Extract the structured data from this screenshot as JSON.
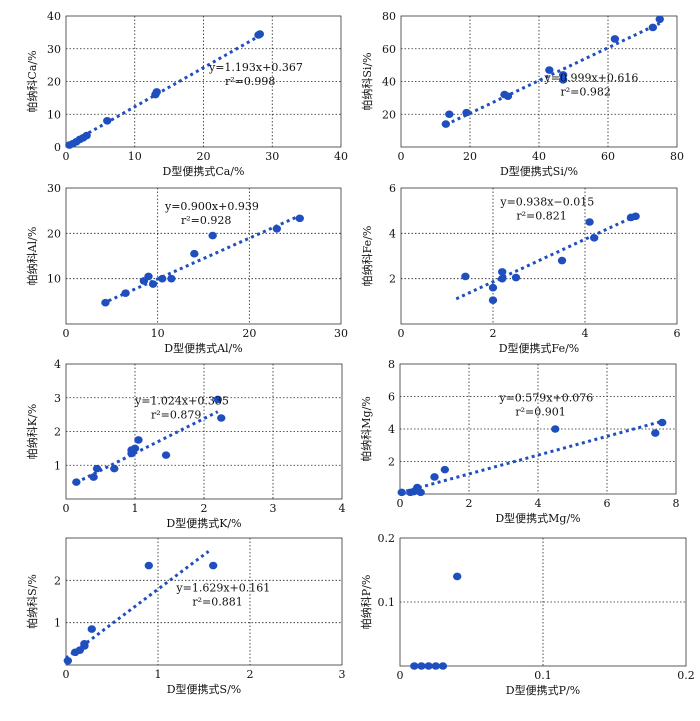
{
  "colors": {
    "point": "#1f4fbf",
    "fit_line": "#1f4fbf",
    "grid": "#222222",
    "axis": "#333333"
  },
  "chart_data": [
    {
      "type": "scatter",
      "xlabel": "D型便携式Ca/%",
      "ylabel": "帕纳科Ca/%",
      "xlim": [
        0,
        40
      ],
      "ylim": [
        0,
        40
      ],
      "xticks": [
        "0",
        "10",
        "20",
        "30",
        "40"
      ],
      "yticks": [
        "0",
        "10",
        "20",
        "30",
        "40"
      ],
      "grid": true,
      "eq_lines": [
        "y=1.193x+0.367",
        "r²=0.998"
      ],
      "fit": {
        "slope": 1.193,
        "intercept": 0.367,
        "x_range": [
          0,
          28
        ]
      },
      "points": [
        [
          0.5,
          0.6
        ],
        [
          1,
          1
        ],
        [
          1.5,
          1.6
        ],
        [
          2,
          2.3
        ],
        [
          2.5,
          2.8
        ],
        [
          3,
          3.5
        ],
        [
          6,
          8
        ],
        [
          13,
          16
        ],
        [
          13.2,
          16.8
        ],
        [
          28,
          34.2
        ],
        [
          28.2,
          34.5
        ]
      ]
    },
    {
      "type": "scatter",
      "xlabel": "D型便携式Si/%",
      "ylabel": "帕纳科Si/%",
      "xlim": [
        0,
        80
      ],
      "ylim": [
        0,
        80
      ],
      "xticks": [
        "0",
        "20",
        "40",
        "60",
        "80"
      ],
      "yticks": [
        "20",
        "40",
        "60",
        "80"
      ],
      "grid": true,
      "eq_lines": [
        "y=0.999x+0.616",
        "r²=0.982"
      ],
      "fit": {
        "slope": 0.999,
        "intercept": 0.616,
        "x_range": [
          13,
          75
        ]
      },
      "points": [
        [
          13,
          14
        ],
        [
          14,
          20
        ],
        [
          19,
          21
        ],
        [
          30,
          32
        ],
        [
          31,
          31
        ],
        [
          43,
          47
        ],
        [
          47,
          41
        ],
        [
          47,
          44
        ],
        [
          62,
          66
        ],
        [
          73,
          73
        ],
        [
          75,
          78
        ]
      ]
    },
    {
      "type": "scatter",
      "xlabel": "D型便携式Al/%",
      "ylabel": "帕纳科Al/%",
      "xlim": [
        0,
        30
      ],
      "ylim": [
        0,
        30
      ],
      "xticks": [
        "0",
        "10",
        "20",
        "30"
      ],
      "yticks": [
        "10",
        "20",
        "30"
      ],
      "grid": true,
      "eq_lines": [
        "y=0.900x+0.939",
        "r²=0.928"
      ],
      "fit": {
        "slope": 0.9,
        "intercept": 0.939,
        "x_range": [
          4,
          25.5
        ]
      },
      "points": [
        [
          4.3,
          4.7
        ],
        [
          6.5,
          6.8
        ],
        [
          8.5,
          9.5
        ],
        [
          9,
          10.5
        ],
        [
          9.5,
          8.8
        ],
        [
          10.5,
          10
        ],
        [
          11.5,
          10
        ],
        [
          14,
          15.5
        ],
        [
          16,
          19.5
        ],
        [
          23,
          21
        ],
        [
          25.5,
          23.3
        ]
      ]
    },
    {
      "type": "scatter",
      "xlabel": "D型便携式Fe/%",
      "ylabel": "帕纳科Fe/%",
      "xlim": [
        0,
        6
      ],
      "ylim": [
        0,
        6
      ],
      "xticks": [
        "0",
        "2",
        "4",
        "6"
      ],
      "yticks": [
        "2",
        "4",
        "6"
      ],
      "grid": true,
      "eq_lines": [
        "y=0.938x−0.015",
        "r²=0.821"
      ],
      "fit": {
        "slope": 0.938,
        "intercept": -0.015,
        "x_range": [
          1.2,
          5.1
        ]
      },
      "points": [
        [
          1.4,
          2.1
        ],
        [
          2,
          1.6
        ],
        [
          2,
          1.05
        ],
        [
          2.2,
          2.3
        ],
        [
          2.2,
          2
        ],
        [
          2.5,
          2.05
        ],
        [
          3.5,
          2.8
        ],
        [
          4.1,
          4.5
        ],
        [
          4.2,
          3.8
        ],
        [
          5,
          4.7
        ],
        [
          5.1,
          4.75
        ]
      ]
    },
    {
      "type": "scatter",
      "xlabel": "D型便携式K/%",
      "ylabel": "帕纳科K/%",
      "xlim": [
        0,
        4
      ],
      "ylim": [
        0,
        4
      ],
      "xticks": [
        "0",
        "1",
        "2",
        "3",
        "4"
      ],
      "yticks": [
        "1",
        "2",
        "3",
        "4"
      ],
      "grid": true,
      "eq_lines": [
        "y=1.024x+0.335",
        "r²=0.879"
      ],
      "fit": {
        "slope": 1.024,
        "intercept": 0.335,
        "x_range": [
          0.15,
          2.2
        ]
      },
      "points": [
        [
          0.15,
          0.5
        ],
        [
          0.4,
          0.65
        ],
        [
          0.45,
          0.9
        ],
        [
          0.7,
          0.9
        ],
        [
          0.95,
          1.35
        ],
        [
          0.95,
          1.45
        ],
        [
          1,
          1.5
        ],
        [
          1.05,
          1.75
        ],
        [
          1.45,
          1.3
        ],
        [
          2.2,
          2.95
        ],
        [
          2.25,
          2.4
        ]
      ]
    },
    {
      "type": "scatter",
      "xlabel": "D型便携式Mg/%",
      "ylabel": "帕纳科Mg/%",
      "xlim": [
        0,
        8
      ],
      "ylim": [
        0,
        8
      ],
      "xticks": [
        "0",
        "2",
        "4",
        "6",
        "8"
      ],
      "yticks": [
        "2",
        "4",
        "6",
        "8"
      ],
      "grid": true,
      "eq_lines": [
        "y=0.579x+0.076",
        "r²=0.901"
      ],
      "fit": {
        "slope": 0.579,
        "intercept": 0.076,
        "x_range": [
          0,
          7.6
        ]
      },
      "points": [
        [
          0.05,
          0.1
        ],
        [
          0.3,
          0.1
        ],
        [
          0.4,
          0.15
        ],
        [
          0.5,
          0.4
        ],
        [
          0.6,
          0.1
        ],
        [
          1,
          1.05
        ],
        [
          1.3,
          1.5
        ],
        [
          4.5,
          4
        ],
        [
          7.4,
          3.75
        ],
        [
          7.6,
          4.4
        ]
      ]
    },
    {
      "type": "scatter",
      "xlabel": "D型便携式S/%",
      "ylabel": "帕纳科S/%",
      "xlim": [
        0,
        3
      ],
      "ylim": [
        0,
        3
      ],
      "xticks": [
        "0",
        "1",
        "2",
        "3"
      ],
      "yticks": [
        "1",
        "2"
      ],
      "grid": true,
      "eq_lines": [
        "y=1.629x+0.161",
        "r²=0.881"
      ],
      "fit": {
        "slope": 1.629,
        "intercept": 0.161,
        "x_range": [
          0,
          1.55
        ]
      },
      "points": [
        [
          0.02,
          0.1
        ],
        [
          0.1,
          0.3
        ],
        [
          0.15,
          0.35
        ],
        [
          0.2,
          0.45
        ],
        [
          0.2,
          0.5
        ],
        [
          0.28,
          0.85
        ],
        [
          0.9,
          2.35
        ],
        [
          1.6,
          2.35
        ]
      ]
    },
    {
      "type": "scatter",
      "xlabel": "D型便携式P/%",
      "ylabel": "帕纳科P/%",
      "xlim": [
        0,
        0.2
      ],
      "ylim": [
        0,
        0.2
      ],
      "xticks": [
        "0",
        "0.1",
        "0.2"
      ],
      "yticks": [
        "0.1",
        "0.2"
      ],
      "grid": true,
      "eq_lines": [],
      "fit": null,
      "points": [
        [
          0.01,
          0
        ],
        [
          0.015,
          0
        ],
        [
          0.02,
          0
        ],
        [
          0.025,
          0
        ],
        [
          0.03,
          0
        ],
        [
          0.04,
          0.14
        ]
      ]
    }
  ]
}
